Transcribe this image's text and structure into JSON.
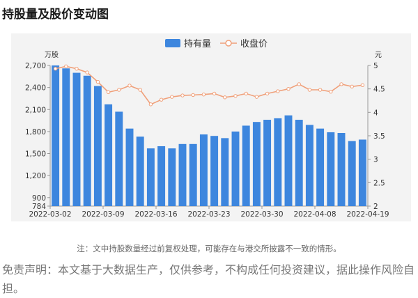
{
  "page": {
    "title": "持股量及股价变动图",
    "note": "注：文中持股数量经过前复权处理，可能存在与港交所披露不一致的情形。",
    "disclaimer": "免责声明：本文基于大数据生产，仅供参考，不构成任何投资建议，据此操作风险自担。"
  },
  "chart_data": {
    "type": "bar",
    "legend_position": "top-center",
    "grid": false,
    "x_tick_labels": [
      "2022-03-02",
      "2022-03-09",
      "2022-03-16",
      "2022-03-23",
      "2022-03-30",
      "2022-04-08",
      "2022-04-19"
    ],
    "y_left": {
      "unit": "万股",
      "ticks": [
        784,
        900,
        1200,
        1500,
        1800,
        2100,
        2400,
        2700
      ],
      "ylim": [
        784,
        2700
      ]
    },
    "y_right": {
      "unit": "元",
      "ticks": [
        2,
        2.5,
        3,
        3.5,
        4,
        4.5,
        5
      ],
      "ylim": [
        2,
        5
      ]
    },
    "series": [
      {
        "name": "持有量",
        "kind": "bar",
        "color": "#3d86de",
        "values": [
          2700,
          2660,
          2600,
          2560,
          2420,
          2170,
          2070,
          1840,
          1730,
          1570,
          1600,
          1570,
          1630,
          1630,
          1760,
          1740,
          1710,
          1800,
          1880,
          1930,
          1960,
          1980,
          2020,
          1960,
          1890,
          1840,
          1790,
          1780,
          1670,
          1690
        ]
      },
      {
        "name": "收盘价",
        "kind": "line",
        "color": "#f0a07a",
        "axis": "right",
        "values": [
          4.93,
          4.98,
          4.93,
          4.85,
          4.65,
          4.43,
          4.48,
          4.57,
          4.48,
          4.17,
          4.27,
          4.33,
          4.36,
          4.37,
          4.38,
          4.4,
          4.32,
          4.35,
          4.4,
          4.33,
          4.4,
          4.45,
          4.5,
          4.6,
          4.48,
          4.48,
          4.44,
          4.6,
          4.55,
          4.58
        ]
      }
    ]
  }
}
